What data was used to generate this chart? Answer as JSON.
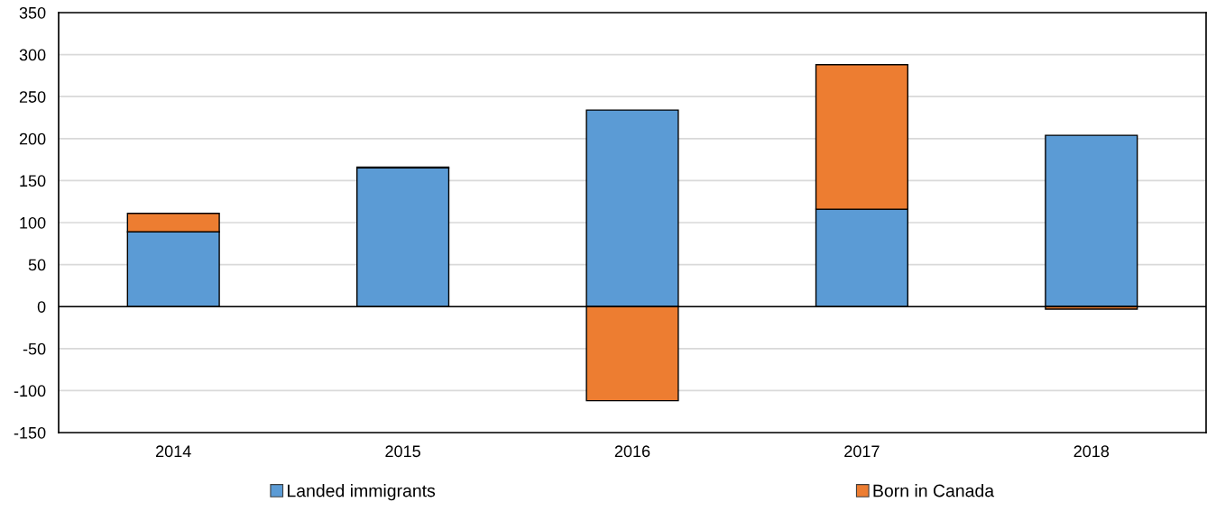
{
  "chart_data": {
    "type": "bar",
    "stacked": true,
    "categories": [
      "2014",
      "2015",
      "2016",
      "2017",
      "2018"
    ],
    "series": [
      {
        "name": "Landed immigrants",
        "color": "#5b9bd5",
        "values": [
          89,
          165,
          234,
          116,
          204
        ]
      },
      {
        "name": "Born in Canada",
        "color": "#ed7d31",
        "values": [
          22,
          1,
          -112,
          172,
          -3
        ]
      }
    ],
    "ylim": [
      -150,
      350
    ],
    "yticks": [
      -150,
      -100,
      -50,
      0,
      50,
      100,
      150,
      200,
      250,
      300,
      350
    ],
    "grid": "y",
    "legend": "bottom"
  }
}
